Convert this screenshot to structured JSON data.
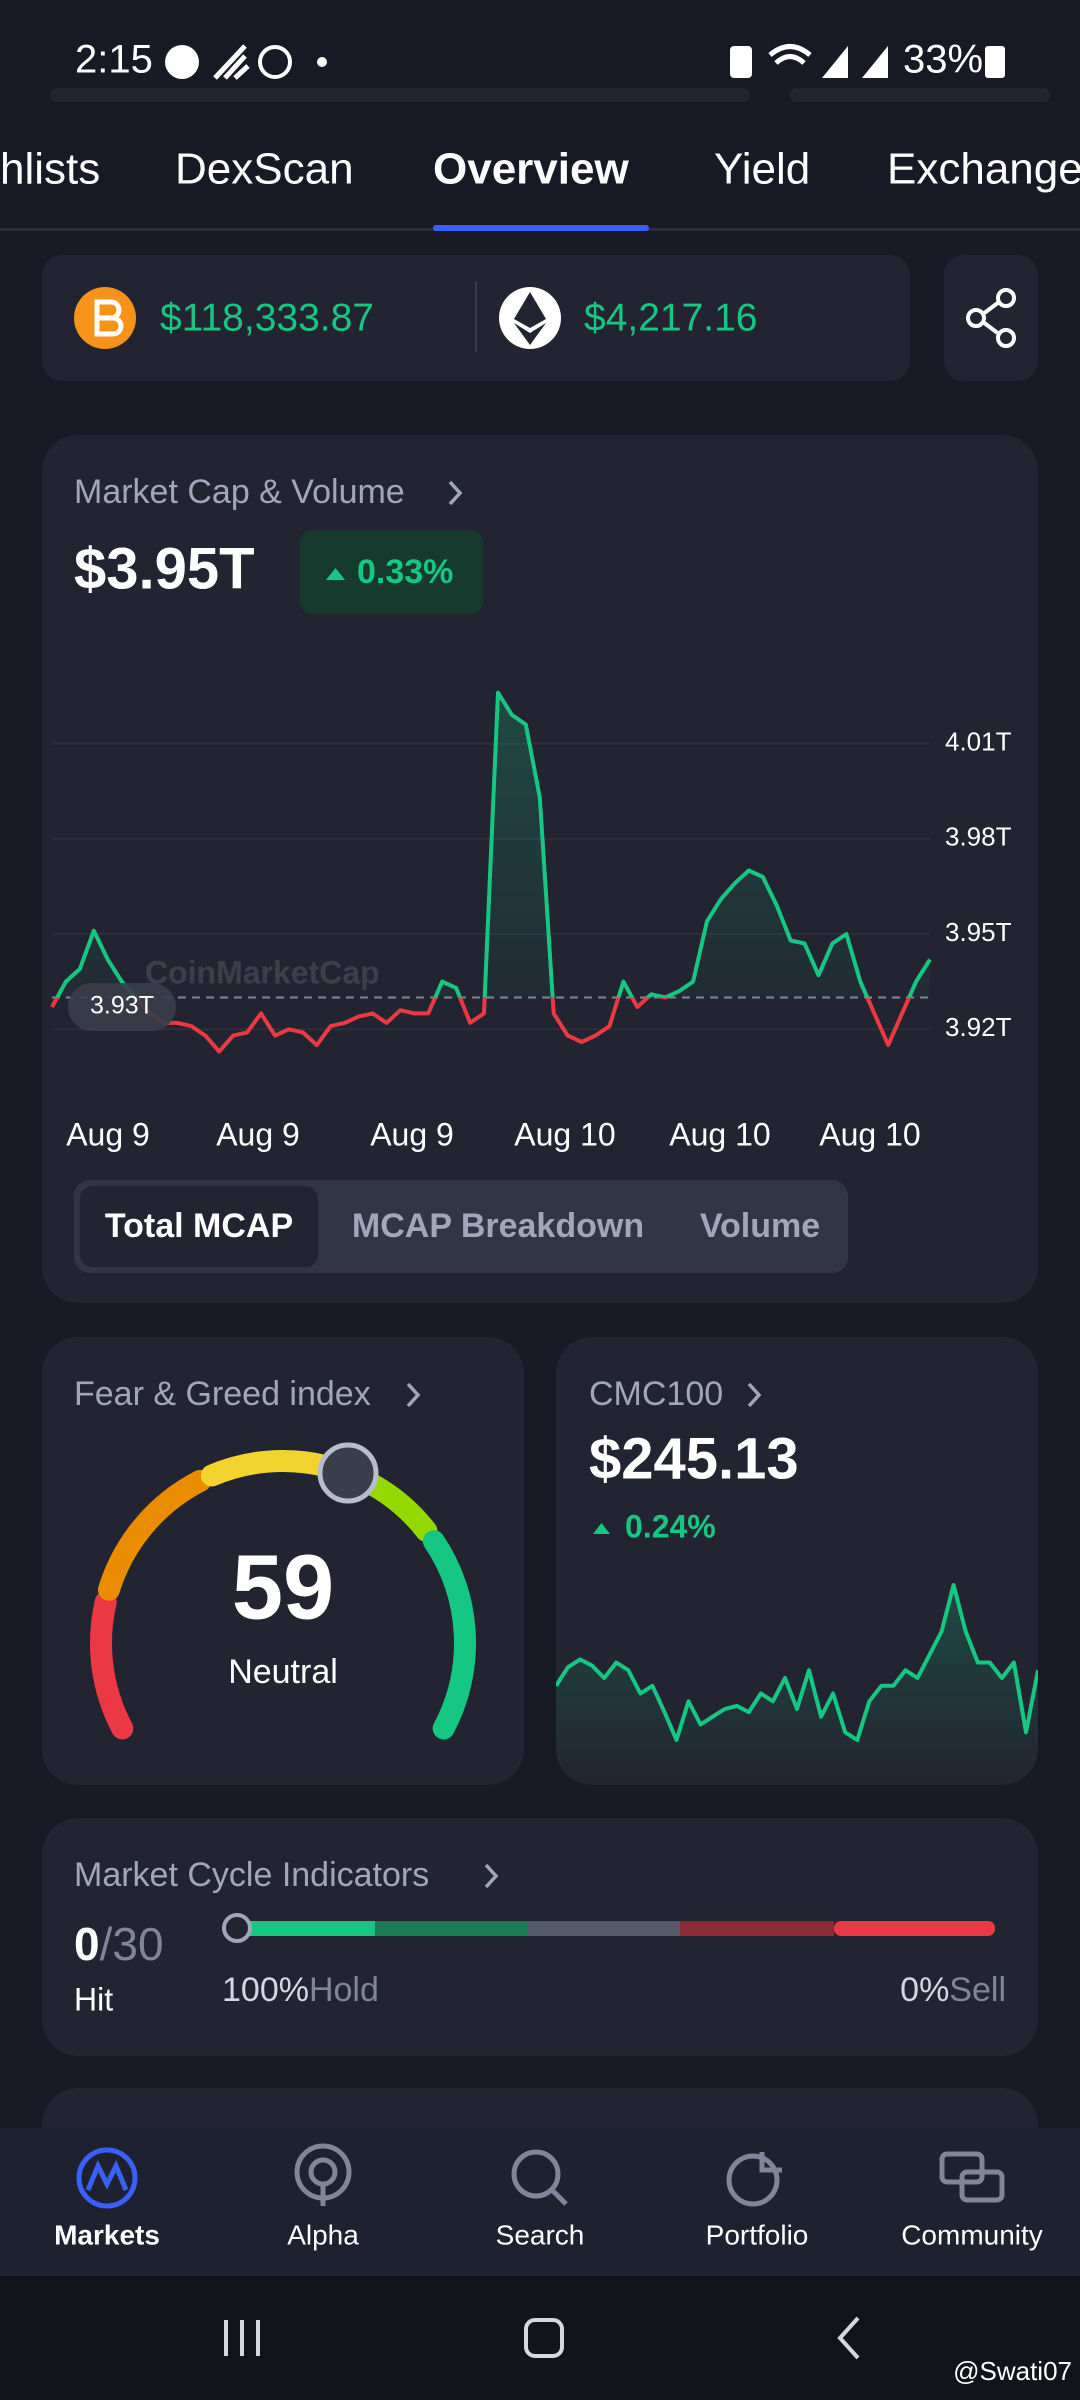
{
  "status_bar": {
    "time": "2:15",
    "battery": "33%"
  },
  "tabs": [
    "hlists",
    "DexScan",
    "Overview",
    "Yield",
    "Exchange"
  ],
  "prices": [
    "$118,333.87",
    "$4,217.16"
  ],
  "market_cap": {
    "title": "Market Cap & Volume",
    "value": "$3.95T",
    "change": "0.33%",
    "chart": {
      "type": "line",
      "x_labels": [
        "Aug 9",
        "Aug 9",
        "Aug 9",
        "Aug 10",
        "Aug 10",
        "Aug 10"
      ],
      "ylim": [
        3.91,
        4.03
      ],
      "yticks": [
        {
          "value": 4.01,
          "label": "4.01T"
        },
        {
          "value": 3.98,
          "label": "3.98T"
        },
        {
          "value": 3.95,
          "label": "3.95T"
        },
        {
          "value": 3.92,
          "label": "3.92T"
        }
      ],
      "baseline": {
        "value": 3.93,
        "label": "3.93T"
      },
      "watermark": "CoinMarketCap",
      "up_color": "#16c784",
      "down_color": "#ea3943",
      "values": [
        3.927,
        3.935,
        3.939,
        3.951,
        3.942,
        3.935,
        3.93,
        3.925,
        3.922,
        3.922,
        3.921,
        3.918,
        3.913,
        3.918,
        3.919,
        3.925,
        3.918,
        3.92,
        3.919,
        3.915,
        3.921,
        3.922,
        3.924,
        3.925,
        3.922,
        3.926,
        3.925,
        3.925,
        3.935,
        3.933,
        3.922,
        3.925,
        4.026,
        4.019,
        4.016,
        3.993,
        3.925,
        3.918,
        3.916,
        3.918,
        3.921,
        3.935,
        3.927,
        3.931,
        3.93,
        3.932,
        3.935,
        3.954,
        3.961,
        3.966,
        3.97,
        3.968,
        3.959,
        3.948,
        3.947,
        3.937,
        3.947,
        3.95,
        3.935,
        3.925,
        3.915,
        3.925,
        3.935,
        3.942
      ]
    },
    "views": [
      "Total MCAP",
      "MCAP Breakdown",
      "Volume"
    ]
  },
  "fear_greed": {
    "title": "Fear & Greed index",
    "value": 59,
    "label": "Neutral"
  },
  "cmc100": {
    "title": "CMC100",
    "value": "$245.13",
    "change": "0.24%",
    "sparkline": [
      244.7,
      244.94,
      245.04,
      244.96,
      244.8,
      245.0,
      244.9,
      244.6,
      244.7,
      244.36,
      244.0,
      244.5,
      244.2,
      244.3,
      244.4,
      244.44,
      244.36,
      244.6,
      244.5,
      244.8,
      244.4,
      244.9,
      244.3,
      244.6,
      244.1,
      244.0,
      244.5,
      244.7,
      244.7,
      244.9,
      244.8,
      245.1,
      245.4,
      246.0,
      245.4,
      245.0,
      245.0,
      244.8,
      245.0,
      244.1,
      244.9
    ]
  },
  "market_cycle": {
    "title": "Market Cycle Indicators",
    "hit_count": 0,
    "hit_total": "/30",
    "hit_label": "Hit",
    "hold": "100%",
    "hold_label": "Hold",
    "sell": "0%",
    "sell_label": "Sell"
  },
  "bottom_nav": [
    "Markets",
    "Alpha",
    "Search",
    "Portfolio",
    "Community"
  ],
  "watermark": "@Swati07"
}
